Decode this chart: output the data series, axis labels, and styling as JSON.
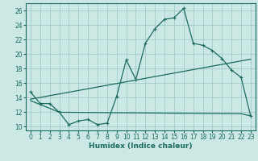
{
  "xlabel": "Humidex (Indice chaleur)",
  "bg_color": "#cce8e4",
  "grid_color": "#a0ccc8",
  "line_color": "#1a6b5e",
  "xlim": [
    -0.5,
    23.5
  ],
  "ylim": [
    9.5,
    27.0
  ],
  "xticks": [
    0,
    1,
    2,
    3,
    4,
    5,
    6,
    7,
    8,
    9,
    10,
    11,
    12,
    13,
    14,
    15,
    16,
    17,
    18,
    19,
    20,
    21,
    22,
    23
  ],
  "yticks": [
    10,
    12,
    14,
    16,
    18,
    20,
    22,
    24,
    26
  ],
  "main_x": [
    0,
    1,
    2,
    3,
    4,
    5,
    6,
    7,
    8,
    9,
    10,
    11,
    12,
    13,
    14,
    15,
    16,
    17,
    18,
    19,
    20,
    21,
    22,
    23
  ],
  "main_y": [
    14.8,
    13.2,
    13.2,
    12.0,
    10.3,
    10.8,
    11.0,
    10.3,
    10.5,
    14.2,
    19.2,
    16.5,
    21.5,
    23.5,
    24.8,
    25.0,
    26.3,
    21.5,
    21.2,
    20.5,
    19.4,
    17.8,
    16.8,
    11.5
  ],
  "line2_x": [
    0,
    23
  ],
  "line2_y": [
    13.8,
    19.3
  ],
  "line3_x": [
    0,
    3,
    22,
    23
  ],
  "line3_y": [
    13.6,
    12.0,
    11.8,
    11.5
  ],
  "xlabel_fontsize": 6.5,
  "tick_fontsize": 5.5
}
